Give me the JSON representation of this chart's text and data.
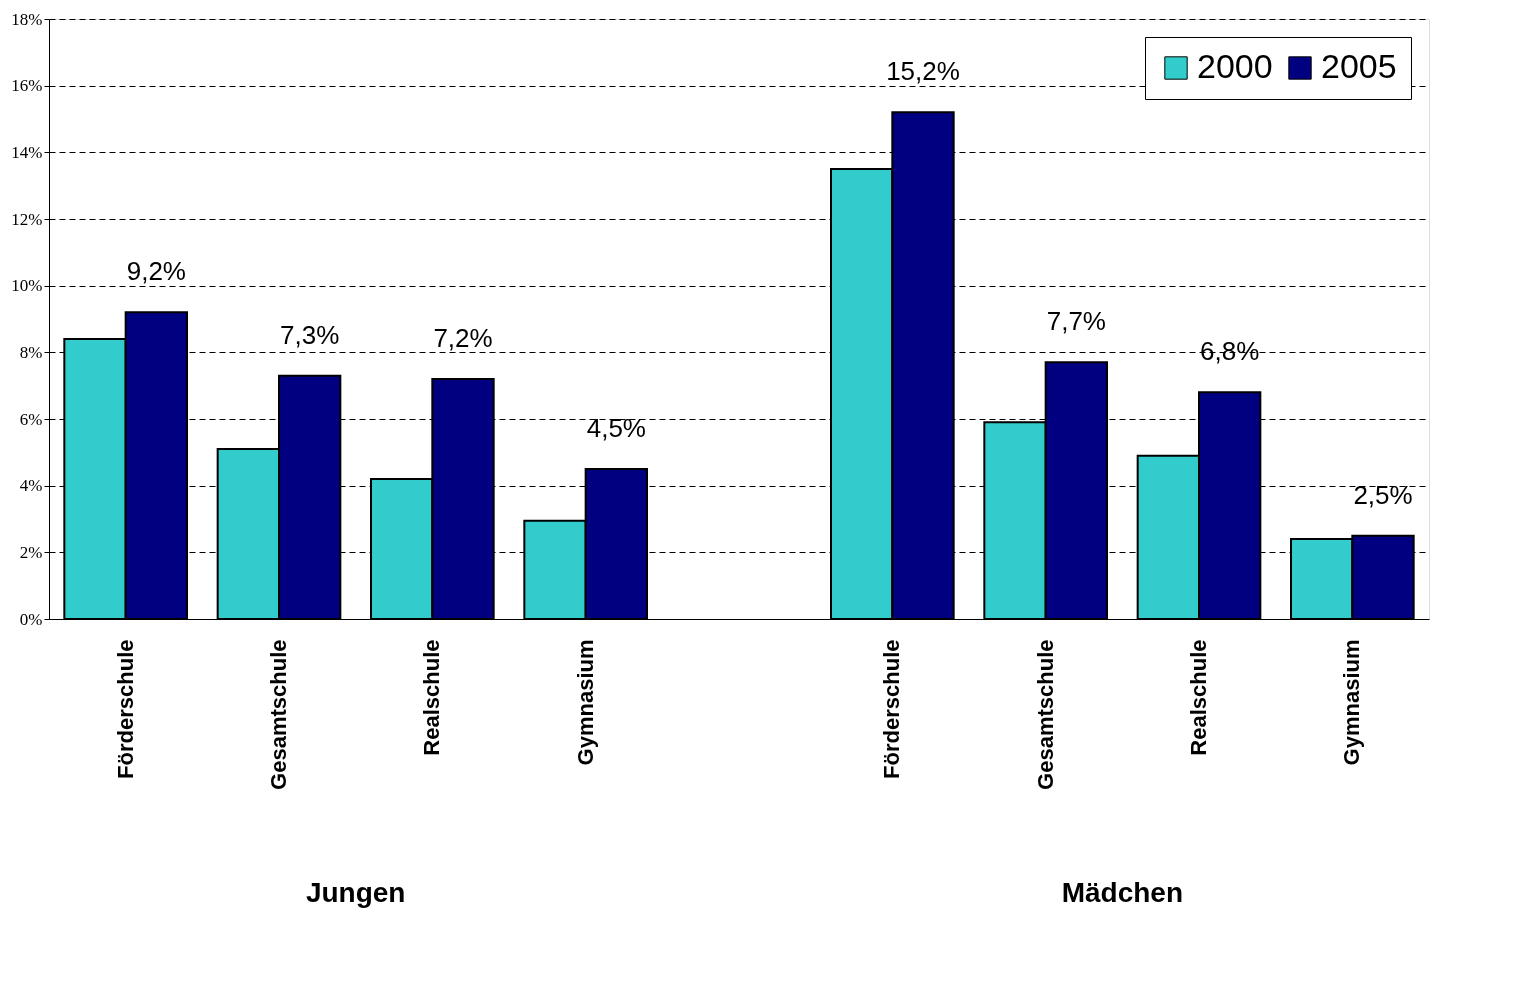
{
  "chart_data": {
    "type": "bar",
    "categories": [
      "Förderschule",
      "Gesamtschule",
      "Realschule",
      "Gymnasium",
      null,
      "Förderschule",
      "Gesamtschule",
      "Realschule",
      "Gymnasium"
    ],
    "annotations": [
      "Jungen",
      "Mädchen"
    ],
    "series": [
      {
        "name": "2000",
        "color": "#33cccc",
        "values": [
          8.4,
          5.1,
          4.2,
          2.95,
          null,
          13.5,
          5.9,
          4.9,
          2.4
        ]
      },
      {
        "name": "2005",
        "color": "#000080",
        "values": [
          9.2,
          7.3,
          7.2,
          4.5,
          null,
          15.2,
          7.7,
          6.8,
          2.5
        ],
        "value_labels": [
          "9,2%",
          "7,3%",
          "7,2%",
          "4,5%",
          null,
          "15,2%",
          "7,7%",
          "6,8%",
          "2,5%"
        ]
      }
    ],
    "ylim": [
      0,
      18
    ],
    "yticks": [
      {
        "value": 0,
        "label": "0%"
      },
      {
        "value": 2,
        "label": "2%"
      },
      {
        "value": 4,
        "label": "4%"
      },
      {
        "value": 6,
        "label": "6%"
      },
      {
        "value": 8,
        "label": "8%"
      },
      {
        "value": 10,
        "label": "10%"
      },
      {
        "value": 12,
        "label": "12%"
      },
      {
        "value": 14,
        "label": "14%"
      },
      {
        "value": 16,
        "label": "16%"
      },
      {
        "value": 18,
        "label": "18%"
      }
    ],
    "grid": "y",
    "legend": "top right"
  }
}
